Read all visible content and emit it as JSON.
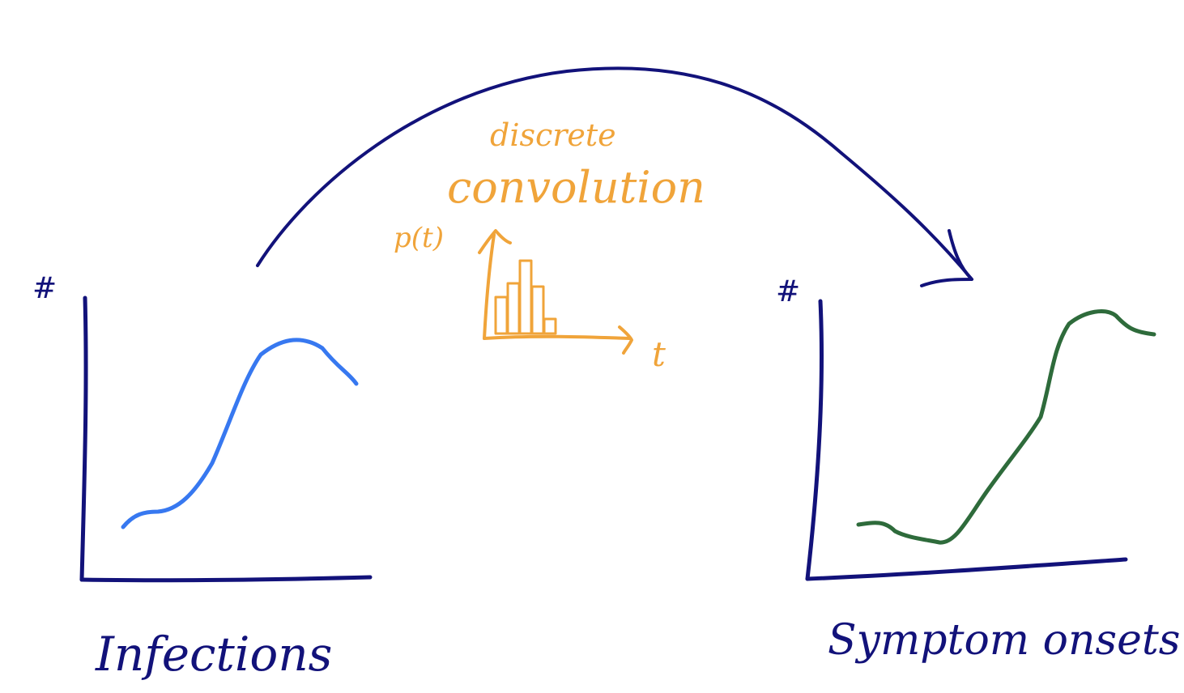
{
  "colors": {
    "ink": "#12127a",
    "accent": "#f0a43a",
    "infections_curve": "#3778f0",
    "onsets_curve": "#2e6b3b"
  },
  "left_plot": {
    "y_symbol": "#",
    "label": "Infections"
  },
  "right_plot": {
    "y_symbol": "#",
    "label": "Symptom onsets"
  },
  "convolution": {
    "prefix": "discrete",
    "title": "convolution",
    "y_label": "p(t)",
    "x_label": "t"
  },
  "distribution": {
    "bar_heights": [
      0.45,
      0.62,
      0.9,
      0.58,
      0.18
    ]
  }
}
